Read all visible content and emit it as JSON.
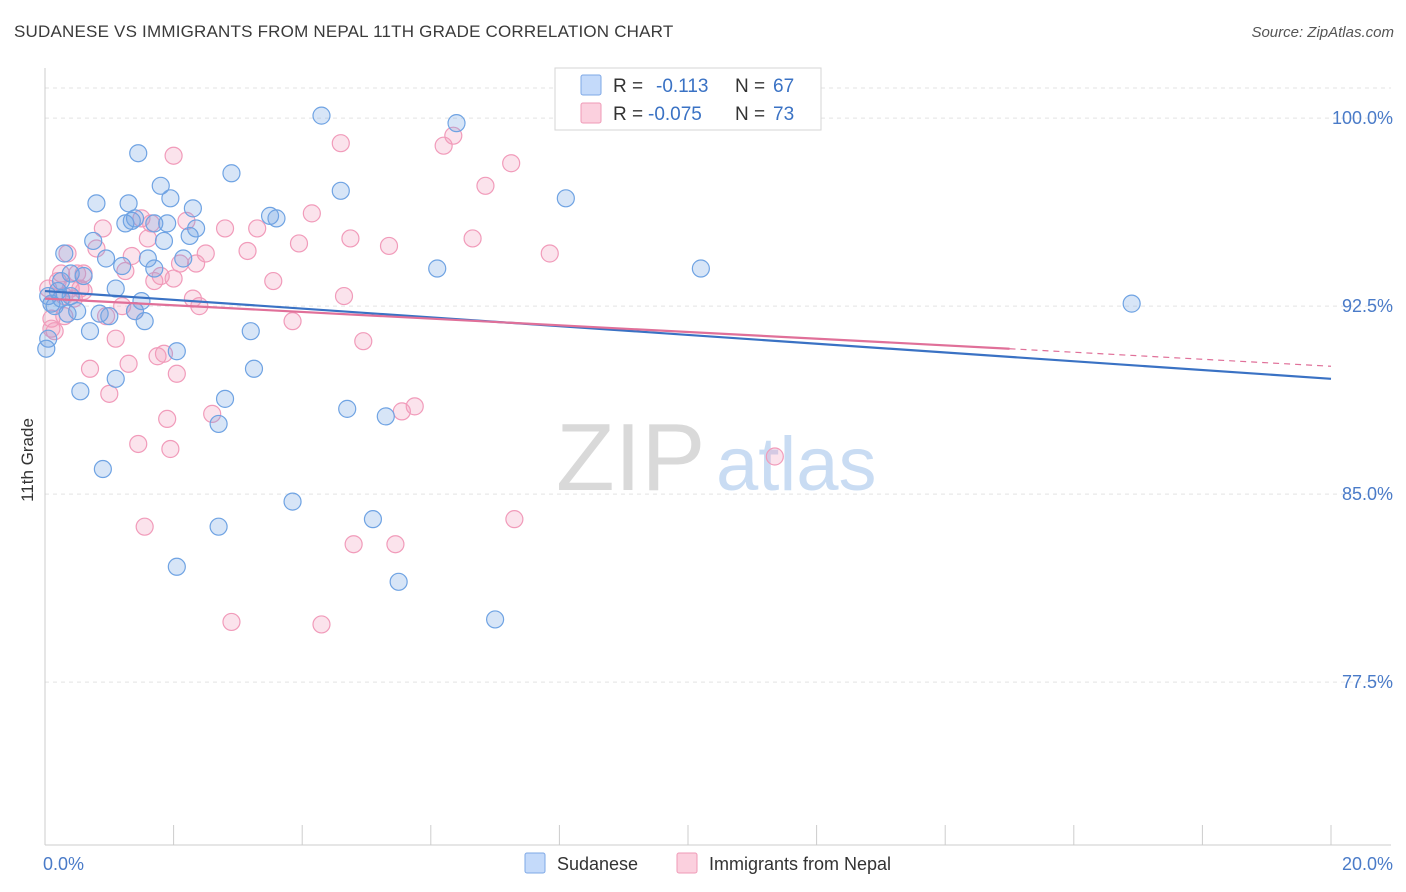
{
  "header": {
    "title": "SUDANESE VS IMMIGRANTS FROM NEPAL 11TH GRADE CORRELATION CHART",
    "source": "Source: ZipAtlas.com"
  },
  "watermark": {
    "zip": "ZIP",
    "atlas": "atlas"
  },
  "legend": {
    "r_label": "R =",
    "n_label": "N =",
    "items": [
      {
        "r": "-0.113",
        "n": "67",
        "color": "#9dc1ee"
      },
      {
        "r": "-0.075",
        "n": "73",
        "color": "#f5b3c8"
      }
    ]
  },
  "chart_data": {
    "type": "scatter",
    "title": "SUDANESE VS IMMIGRANTS FROM NEPAL 11TH GRADE CORRELATION CHART",
    "xlabel": "",
    "ylabel": "11th Grade",
    "xlim": [
      0,
      20
    ],
    "ylim": [
      71,
      102
    ],
    "x_tick_labels": [
      "0.0%",
      "20.0%"
    ],
    "y_ticks": [
      77.5,
      85.0,
      92.5,
      100.0
    ],
    "y_tick_labels": [
      "77.5%",
      "85.0%",
      "92.5%",
      "100.0%"
    ],
    "grid": true,
    "legend_position": "top-center",
    "series": [
      {
        "name": "Sudanese",
        "color": "#6fa3e3",
        "line_color": "#3a72c4",
        "trend": {
          "x": [
            0,
            20
          ],
          "y": [
            93.1,
            89.6
          ]
        },
        "points": [
          [
            0.05,
            92.9
          ],
          [
            0.1,
            92.6
          ],
          [
            0.2,
            93.1
          ],
          [
            0.25,
            92.8
          ],
          [
            0.3,
            94.6
          ],
          [
            0.35,
            92.2
          ],
          [
            0.4,
            93.8
          ],
          [
            0.5,
            92.3
          ],
          [
            0.55,
            89.1
          ],
          [
            0.6,
            93.7
          ],
          [
            0.7,
            91.5
          ],
          [
            0.75,
            95.1
          ],
          [
            0.8,
            96.6
          ],
          [
            0.85,
            92.2
          ],
          [
            0.9,
            86.0
          ],
          [
            0.95,
            94.4
          ],
          [
            1.0,
            92.1
          ],
          [
            1.1,
            93.2
          ],
          [
            1.1,
            89.6
          ],
          [
            1.2,
            94.1
          ],
          [
            1.25,
            95.8
          ],
          [
            1.3,
            96.6
          ],
          [
            1.35,
            95.9
          ],
          [
            1.4,
            92.3
          ],
          [
            1.45,
            98.6
          ],
          [
            1.5,
            92.7
          ],
          [
            1.55,
            91.9
          ],
          [
            1.6,
            94.4
          ],
          [
            1.7,
            95.8
          ],
          [
            1.7,
            94.0
          ],
          [
            1.8,
            97.3
          ],
          [
            1.85,
            95.1
          ],
          [
            1.9,
            95.8
          ],
          [
            1.95,
            96.8
          ],
          [
            2.05,
            90.7
          ],
          [
            2.15,
            94.4
          ],
          [
            2.25,
            95.3
          ],
          [
            2.3,
            96.4
          ],
          [
            2.35,
            95.6
          ],
          [
            2.7,
            87.8
          ],
          [
            2.8,
            88.8
          ],
          [
            2.9,
            97.8
          ],
          [
            3.2,
            91.5
          ],
          [
            3.25,
            90.0
          ],
          [
            3.5,
            96.1
          ],
          [
            3.6,
            96.0
          ],
          [
            3.85,
            84.7
          ],
          [
            4.3,
            100.1
          ],
          [
            4.6,
            97.1
          ],
          [
            4.7,
            88.4
          ],
          [
            5.1,
            84.0
          ],
          [
            5.3,
            88.1
          ],
          [
            5.5,
            81.5
          ],
          [
            6.1,
            94.0
          ],
          [
            6.4,
            99.8
          ],
          [
            7.0,
            80.0
          ],
          [
            8.1,
            96.8
          ],
          [
            10.2,
            94.0
          ],
          [
            16.9,
            92.6
          ],
          [
            2.7,
            83.7
          ],
          [
            2.05,
            82.1
          ],
          [
            1.4,
            96.0
          ],
          [
            0.4,
            92.9
          ],
          [
            0.25,
            93.5
          ],
          [
            0.15,
            92.5
          ],
          [
            0.05,
            91.2
          ],
          [
            0.02,
            90.8
          ]
        ]
      },
      {
        "name": "Immigrants from Nepal",
        "color": "#f19bba",
        "line_color": "#e07099",
        "trend": {
          "x": [
            0,
            15
          ],
          "y": [
            92.8,
            90.8
          ]
        },
        "trend_extension": {
          "x": [
            15,
            20
          ],
          "y": [
            90.8,
            90.1
          ]
        },
        "points": [
          [
            0.05,
            93.2
          ],
          [
            0.1,
            92.0
          ],
          [
            0.15,
            91.5
          ],
          [
            0.2,
            93.5
          ],
          [
            0.25,
            93.8
          ],
          [
            0.3,
            92.9
          ],
          [
            0.35,
            94.6
          ],
          [
            0.4,
            93.2
          ],
          [
            0.45,
            92.8
          ],
          [
            0.5,
            93.8
          ],
          [
            0.55,
            93.2
          ],
          [
            0.6,
            93.8
          ],
          [
            0.7,
            90.0
          ],
          [
            0.8,
            94.8
          ],
          [
            0.9,
            95.6
          ],
          [
            1.0,
            89.0
          ],
          [
            1.1,
            91.2
          ],
          [
            1.2,
            92.5
          ],
          [
            1.25,
            93.9
          ],
          [
            1.3,
            90.2
          ],
          [
            1.35,
            94.5
          ],
          [
            1.45,
            87.0
          ],
          [
            1.5,
            96.0
          ],
          [
            1.55,
            83.7
          ],
          [
            1.6,
            95.2
          ],
          [
            1.65,
            95.8
          ],
          [
            1.7,
            93.5
          ],
          [
            1.75,
            90.5
          ],
          [
            1.8,
            93.7
          ],
          [
            1.85,
            90.6
          ],
          [
            1.9,
            88.0
          ],
          [
            1.95,
            86.8
          ],
          [
            2.0,
            98.5
          ],
          [
            2.05,
            89.8
          ],
          [
            2.1,
            94.2
          ],
          [
            2.2,
            95.9
          ],
          [
            2.3,
            92.8
          ],
          [
            2.4,
            92.5
          ],
          [
            2.5,
            94.6
          ],
          [
            2.6,
            88.2
          ],
          [
            2.8,
            95.6
          ],
          [
            2.9,
            79.9
          ],
          [
            3.15,
            94.7
          ],
          [
            3.3,
            95.6
          ],
          [
            3.85,
            91.9
          ],
          [
            3.95,
            95.0
          ],
          [
            4.15,
            96.2
          ],
          [
            4.3,
            79.8
          ],
          [
            4.6,
            99.0
          ],
          [
            4.65,
            92.9
          ],
          [
            4.75,
            95.2
          ],
          [
            4.8,
            83.0
          ],
          [
            4.95,
            91.1
          ],
          [
            5.35,
            94.9
          ],
          [
            5.45,
            83.0
          ],
          [
            5.55,
            88.3
          ],
          [
            5.75,
            88.5
          ],
          [
            6.2,
            98.9
          ],
          [
            6.35,
            99.3
          ],
          [
            6.65,
            95.2
          ],
          [
            6.85,
            97.3
          ],
          [
            7.25,
            98.2
          ],
          [
            7.3,
            84.0
          ],
          [
            7.85,
            94.6
          ],
          [
            11.35,
            86.5
          ],
          [
            2.0,
            93.6
          ],
          [
            1.4,
            92.3
          ],
          [
            0.95,
            92.1
          ],
          [
            0.6,
            93.1
          ],
          [
            0.3,
            92.1
          ],
          [
            0.1,
            91.6
          ],
          [
            2.35,
            94.2
          ],
          [
            3.55,
            93.5
          ]
        ]
      }
    ]
  },
  "bottom_legend": {
    "items": [
      {
        "label": "Sudanese",
        "color": "#9dc1ee"
      },
      {
        "label": "Immigrants from Nepal",
        "color": "#f5b3c8"
      }
    ]
  }
}
